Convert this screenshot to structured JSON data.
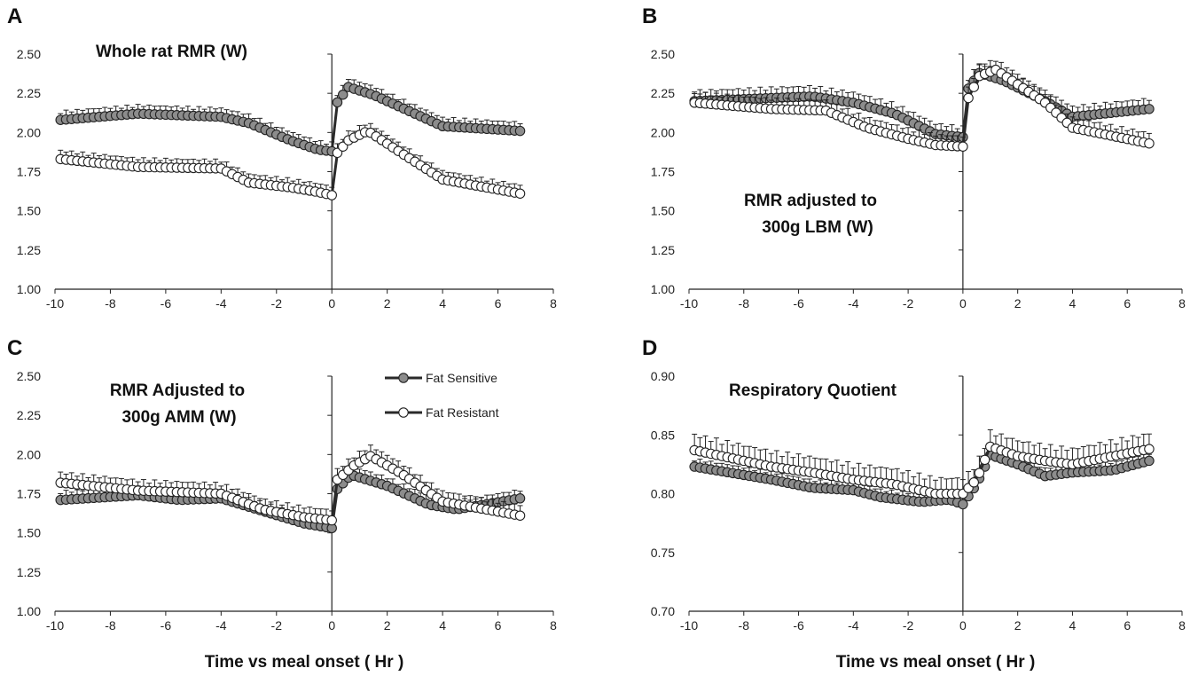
{
  "legend": {
    "series_names": [
      "Fat Sensitive",
      "Fat Resistant"
    ]
  },
  "xlabel": "Time vs meal onset ( Hr )",
  "colors": {
    "fat_sensitive_fill": "#8c8c8c",
    "fat_resistant_fill": "#ffffff",
    "stroke": "#222222"
  },
  "chart_data": [
    {
      "panel": "A",
      "type": "scatter",
      "title": "Whole rat RMR (W)",
      "xlim": [
        -10,
        8
      ],
      "ylim": [
        1.0,
        2.5
      ],
      "xticks": [
        "-10",
        "-8",
        "-6",
        "-4",
        "-2",
        "0",
        "2",
        "4",
        "6",
        "8"
      ],
      "yticks": [
        "1.00",
        "1.25",
        "1.50",
        "1.75",
        "2.00",
        "2.25",
        "2.50"
      ],
      "series": [
        {
          "name": "Fat Sensitive",
          "knots": [
            [
              -9.8,
              2.08
            ],
            [
              -7,
              2.12
            ],
            [
              -4,
              2.1
            ],
            [
              -3,
              2.06
            ],
            [
              -1.5,
              1.95
            ],
            [
              -0.5,
              1.89
            ],
            [
              0,
              1.88
            ],
            [
              0.15,
              2.18
            ],
            [
              0.6,
              2.29
            ],
            [
              1.5,
              2.24
            ],
            [
              3,
              2.12
            ],
            [
              4,
              2.04
            ],
            [
              6.8,
              2.01
            ]
          ],
          "err": 0.05
        },
        {
          "name": "Fat Resistant",
          "knots": [
            [
              -9.8,
              1.83
            ],
            [
              -7,
              1.78
            ],
            [
              -4,
              1.77
            ],
            [
              -3,
              1.68
            ],
            [
              -1.5,
              1.65
            ],
            [
              -0.5,
              1.62
            ],
            [
              0,
              1.6
            ],
            [
              0.15,
              1.86
            ],
            [
              0.6,
              1.95
            ],
            [
              1.3,
              2.01
            ],
            [
              2.5,
              1.87
            ],
            [
              4,
              1.7
            ],
            [
              6.8,
              1.61
            ]
          ],
          "err": 0.05
        }
      ]
    },
    {
      "panel": "B",
      "type": "scatter",
      "title": "RMR  adjusted to 300g LBM (W)",
      "xlim": [
        -10,
        8
      ],
      "ylim": [
        1.0,
        2.5
      ],
      "xticks": [
        "-10",
        "-8",
        "-6",
        "-4",
        "-2",
        "0",
        "2",
        "4",
        "6",
        "8"
      ],
      "yticks": [
        "1.00",
        "1.25",
        "1.50",
        "1.75",
        "2.00",
        "2.25",
        "2.50"
      ],
      "series": [
        {
          "name": "Fat Sensitive",
          "knots": [
            [
              -9.8,
              2.2
            ],
            [
              -7,
              2.22
            ],
            [
              -5.5,
              2.23
            ],
            [
              -4,
              2.19
            ],
            [
              -2.5,
              2.12
            ],
            [
              -1,
              1.99
            ],
            [
              0,
              1.97
            ],
            [
              0.2,
              2.28
            ],
            [
              0.6,
              2.38
            ],
            [
              1.5,
              2.33
            ],
            [
              3,
              2.2
            ],
            [
              4,
              2.1
            ],
            [
              6.8,
              2.15
            ]
          ],
          "err": 0.06
        },
        {
          "name": "Fat Resistant",
          "knots": [
            [
              -9.8,
              2.19
            ],
            [
              -7,
              2.15
            ],
            [
              -5,
              2.14
            ],
            [
              -3.5,
              2.03
            ],
            [
              -2,
              1.96
            ],
            [
              -1,
              1.92
            ],
            [
              0,
              1.91
            ],
            [
              0.2,
              2.22
            ],
            [
              0.6,
              2.36
            ],
            [
              1.2,
              2.4
            ],
            [
              3,
              2.19
            ],
            [
              4,
              2.03
            ],
            [
              6.8,
              1.93
            ]
          ],
          "err": 0.06
        }
      ]
    },
    {
      "panel": "C",
      "type": "scatter",
      "title": "RMR Adjusted to 300g AMM (W)",
      "xlim": [
        -10,
        8
      ],
      "ylim": [
        1.0,
        2.5
      ],
      "xticks": [
        "-10",
        "-8",
        "-6",
        "-4",
        "-2",
        "0",
        "2",
        "4",
        "6",
        "8"
      ],
      "yticks": [
        "1.00",
        "1.25",
        "1.50",
        "1.75",
        "2.00",
        "2.25",
        "2.50"
      ],
      "series": [
        {
          "name": "Fat Sensitive",
          "knots": [
            [
              -9.8,
              1.71
            ],
            [
              -7,
              1.74
            ],
            [
              -5.5,
              1.71
            ],
            [
              -4,
              1.72
            ],
            [
              -2.5,
              1.64
            ],
            [
              -1,
              1.56
            ],
            [
              0,
              1.53
            ],
            [
              0.2,
              1.78
            ],
            [
              0.7,
              1.87
            ],
            [
              2,
              1.8
            ],
            [
              3.5,
              1.68
            ],
            [
              4.5,
              1.65
            ],
            [
              6.8,
              1.72
            ]
          ],
          "err": 0.05
        },
        {
          "name": "Fat Resistant",
          "knots": [
            [
              -9.8,
              1.82
            ],
            [
              -7,
              1.77
            ],
            [
              -5.5,
              1.76
            ],
            [
              -4,
              1.75
            ],
            [
              -2.5,
              1.65
            ],
            [
              -1,
              1.6
            ],
            [
              0,
              1.58
            ],
            [
              0.2,
              1.84
            ],
            [
              0.8,
              1.93
            ],
            [
              1.4,
              1.99
            ],
            [
              2.5,
              1.88
            ],
            [
              4,
              1.7
            ],
            [
              6.8,
              1.61
            ]
          ],
          "err": 0.06
        }
      ]
    },
    {
      "panel": "D",
      "type": "scatter",
      "title": "Respiratory  Quotient",
      "xlim": [
        -10,
        8
      ],
      "ylim": [
        0.7,
        0.9
      ],
      "xticks": [
        "-10",
        "-8",
        "-6",
        "-4",
        "-2",
        "0",
        "2",
        "4",
        "6",
        "8"
      ],
      "yticks": [
        "0.70",
        "0.75",
        "0.80",
        "0.85",
        "0.90"
      ],
      "series": [
        {
          "name": "Fat Sensitive",
          "knots": [
            [
              -9.8,
              0.823
            ],
            [
              -7,
              0.812
            ],
            [
              -5.5,
              0.805
            ],
            [
              -4,
              0.803
            ],
            [
              -3,
              0.797
            ],
            [
              -1.5,
              0.793
            ],
            [
              -0.5,
              0.795
            ],
            [
              0,
              0.791
            ],
            [
              0.5,
              0.808
            ],
            [
              1,
              0.833
            ],
            [
              2,
              0.825
            ],
            [
              3,
              0.815
            ],
            [
              4,
              0.818
            ],
            [
              5.5,
              0.82
            ],
            [
              6.8,
              0.828
            ]
          ],
          "err": 0.006
        },
        {
          "name": "Fat Resistant",
          "knots": [
            [
              -9.8,
              0.837
            ],
            [
              -7,
              0.823
            ],
            [
              -5.5,
              0.818
            ],
            [
              -4,
              0.812
            ],
            [
              -2.5,
              0.808
            ],
            [
              -1,
              0.8
            ],
            [
              0,
              0.8
            ],
            [
              0.5,
              0.812
            ],
            [
              1,
              0.84
            ],
            [
              2,
              0.832
            ],
            [
              3,
              0.828
            ],
            [
              4,
              0.825
            ],
            [
              5.5,
              0.832
            ],
            [
              6.8,
              0.838
            ]
          ],
          "err": 0.012
        }
      ]
    }
  ]
}
